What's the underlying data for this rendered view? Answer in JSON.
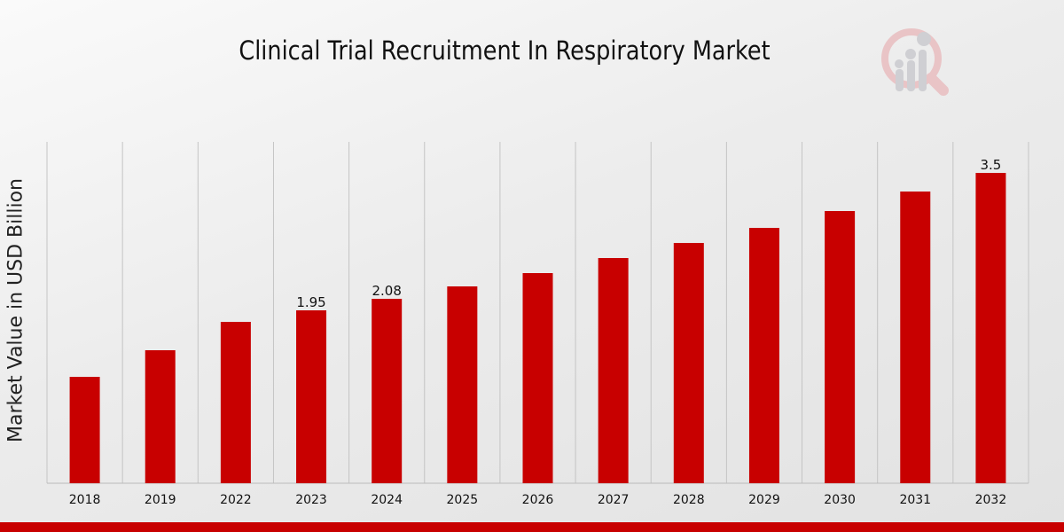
{
  "chart_data": {
    "type": "bar",
    "title": "Clinical Trial Recruitment In Respiratory Market",
    "xlabel": "",
    "ylabel": "Market Value in USD Billion",
    "categories": [
      "2018",
      "2019",
      "2022",
      "2023",
      "2024",
      "2025",
      "2026",
      "2027",
      "2028",
      "2029",
      "2030",
      "2031",
      "2032"
    ],
    "values": [
      1.2,
      1.5,
      1.82,
      1.95,
      2.08,
      2.22,
      2.37,
      2.54,
      2.71,
      2.88,
      3.07,
      3.29,
      3.5
    ],
    "data_labels": {
      "2023": "1.95",
      "2024": "2.08",
      "2032": "3.5"
    },
    "ylim": [
      0,
      3.85
    ],
    "grid": "vertical",
    "bar_color": "#c80000"
  },
  "accent_color": "#c80000"
}
